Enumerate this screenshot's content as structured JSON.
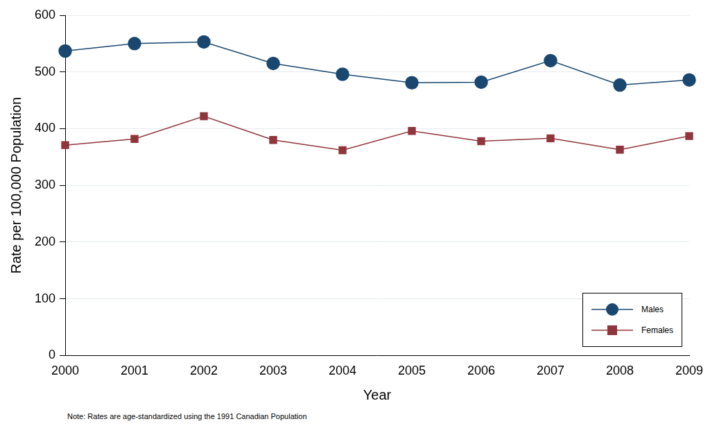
{
  "chart_data": {
    "type": "line",
    "x_label": "Year",
    "y_label": "Rate per 100,000 Population",
    "note": "Note: Rates are age-standardized using the 1991 Canadian Population",
    "categories": [
      "2000",
      "2001",
      "2002",
      "2003",
      "2004",
      "2005",
      "2006",
      "2007",
      "2008",
      "2009"
    ],
    "series": [
      {
        "name": "Males",
        "color": "#1a476f",
        "marker": "circle",
        "values": [
          537,
          550,
          553,
          515,
          496,
          481,
          482,
          520,
          477,
          486
        ]
      },
      {
        "name": "Females",
        "color": "#90353b",
        "marker": "square",
        "values": [
          371,
          382,
          422,
          380,
          362,
          396,
          378,
          383,
          363,
          387
        ]
      }
    ],
    "ylim": [
      0,
      600
    ],
    "yticks": [
      0,
      100,
      200,
      300,
      400,
      500,
      600
    ],
    "grid": true,
    "legend": "lower right"
  }
}
